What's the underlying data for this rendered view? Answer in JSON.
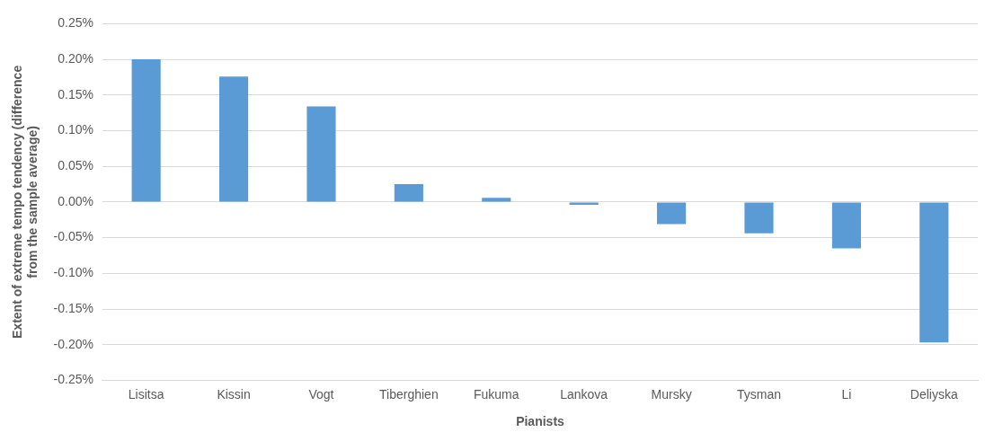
{
  "chart_data": {
    "type": "bar",
    "xlabel": "Pianists",
    "ylabel": "Extent of extreme tempo tendency (difference from the sample average)",
    "categories": [
      "Lisitsa",
      "Kissin",
      "Vogt",
      "Tiberghien",
      "Fukuma",
      "Lankova",
      "Mursky",
      "Tysman",
      "Li",
      "Deliyska"
    ],
    "values": [
      0.2,
      0.176,
      0.134,
      0.025,
      0.006,
      -0.004,
      -0.031,
      -0.044,
      -0.065,
      -0.197
    ],
    "color": "#5b9bd5",
    "ylim": [
      -0.25,
      0.25
    ],
    "yticks": [
      {
        "value": -0.25,
        "label": "-0.25%"
      },
      {
        "value": -0.2,
        "label": "-0.20%"
      },
      {
        "value": -0.15,
        "label": "-0.15%"
      },
      {
        "value": -0.1,
        "label": "-0.10%"
      },
      {
        "value": -0.05,
        "label": "-0.05%"
      },
      {
        "value": 0,
        "label": "0.00%"
      },
      {
        "value": 0.05,
        "label": "0.05%"
      },
      {
        "value": 0.1,
        "label": "0.10%"
      },
      {
        "value": 0.15,
        "label": "0.15%"
      },
      {
        "value": 0.2,
        "label": "0.20%"
      },
      {
        "value": 0.25,
        "label": "0.25%"
      }
    ],
    "grid": "y"
  }
}
